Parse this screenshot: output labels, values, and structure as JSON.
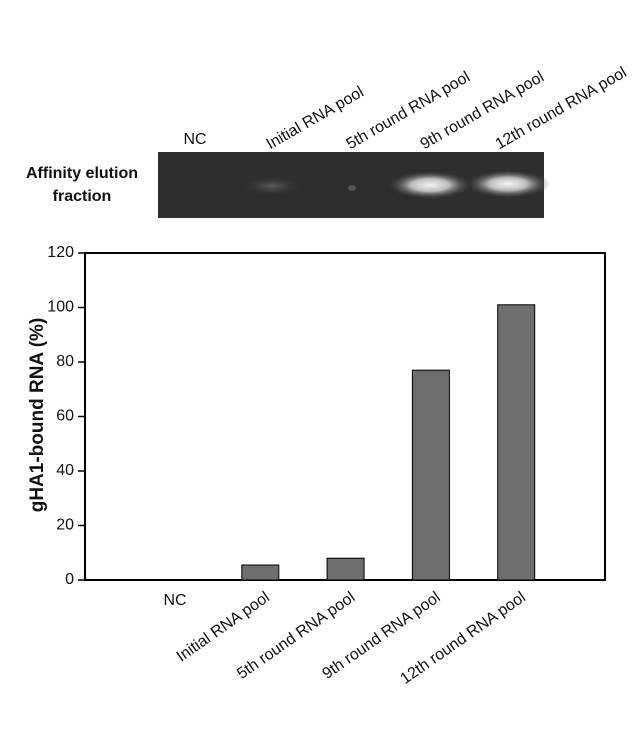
{
  "gel_label": [
    "Affinity elution",
    "fraction"
  ],
  "chart_data": {
    "type": "bar",
    "y_label": "gHA1-bound RNA (%)",
    "categories": [
      "NC",
      "Initial RNA pool",
      "5th round RNA pool",
      "9th round RNA pool",
      "12th round RNA pool"
    ],
    "values": [
      0,
      5.5,
      8,
      77,
      101
    ],
    "color": "#6e6e6e",
    "ylim": [
      0,
      120
    ],
    "yticks": [
      0,
      20,
      40,
      60,
      80,
      100,
      120
    ],
    "grid": false
  }
}
